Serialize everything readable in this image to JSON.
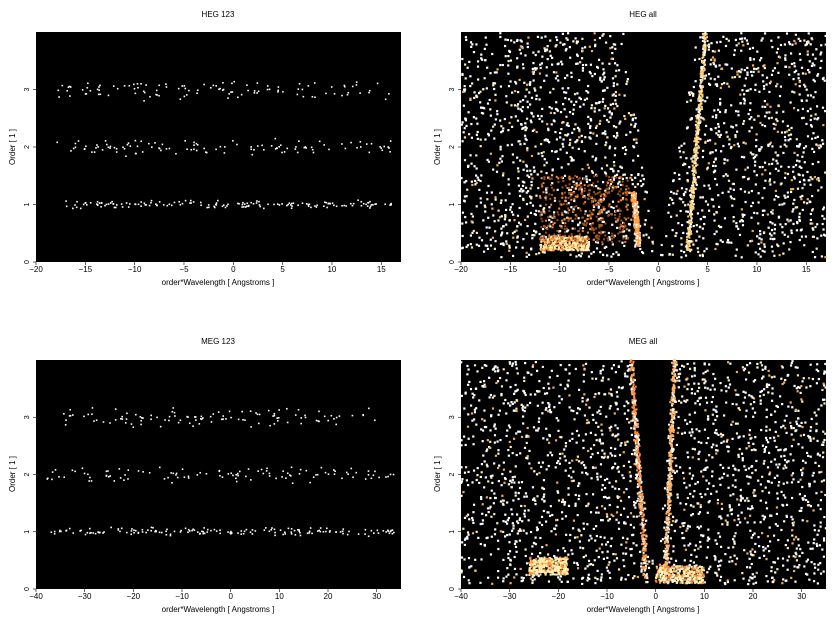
{
  "chart_data": [
    {
      "type": "heatmap",
      "title": "HEG 123",
      "xlabel": "order*Wavelength [ Angstroms ]",
      "ylabel": "Order [ 1 ]",
      "xlim": [
        -20,
        17
      ],
      "ylim": [
        0,
        4
      ],
      "xticks": [
        "−20",
        "−15",
        "−10",
        "−5",
        "0",
        "5",
        "10",
        "15"
      ],
      "yticks": [
        "0",
        "1",
        "2",
        "3"
      ],
      "background": "#000000",
      "density": "sparse",
      "bands": [
        {
          "order": 1,
          "x_range": [
            -17,
            16
          ],
          "spread": 0.1
        },
        {
          "order": 2,
          "x_range": [
            -18,
            16
          ],
          "spread": 0.18
        },
        {
          "order": 3,
          "x_range": [
            -18,
            16
          ],
          "spread": 0.25
        }
      ]
    },
    {
      "type": "heatmap",
      "title": "HEG all",
      "xlabel": "order*Wavelength [ Angstroms ]",
      "ylabel": "Order [ 1 ]",
      "xlim": [
        -20,
        17
      ],
      "ylim": [
        0,
        4
      ],
      "xticks": [
        "−20",
        "−15",
        "−10",
        "−5",
        "0",
        "5",
        "10",
        "15"
      ],
      "yticks": [
        "0",
        "1",
        "2",
        "3"
      ],
      "background": "#000000",
      "density": "dense",
      "empty_wedge": {
        "apex_x": 0,
        "top_x_range": [
          -3.5,
          4
        ]
      },
      "bright_arms": [
        {
          "from": [
            3,
            0.2
          ],
          "to": [
            4.8,
            4
          ],
          "color": "#ffd070"
        },
        {
          "from": [
            -2,
            0.3
          ],
          "to": [
            -2.5,
            1.2
          ],
          "color": "#ff9a40"
        }
      ],
      "hot_regions": [
        {
          "x_range": [
            -12,
            -7
          ],
          "y_range": [
            0.2,
            0.45
          ],
          "color": "#fff0b0"
        },
        {
          "x_range": [
            -12,
            -3
          ],
          "y_range": [
            0.3,
            1.5
          ],
          "color": "#a05020"
        }
      ]
    },
    {
      "type": "heatmap",
      "title": "MEG 123",
      "xlabel": "order*Wavelength [ Angstroms ]",
      "ylabel": "Order [ 1 ]",
      "xlim": [
        -40,
        35
      ],
      "ylim": [
        0,
        4
      ],
      "xticks": [
        "−40",
        "−30",
        "−20",
        "−10",
        "0",
        "10",
        "20",
        "30"
      ],
      "yticks": [
        "0",
        "1",
        "2",
        "3"
      ],
      "background": "#000000",
      "density": "sparse",
      "bands": [
        {
          "order": 1,
          "x_range": [
            -38,
            34
          ],
          "spread": 0.1
        },
        {
          "order": 2,
          "x_range": [
            -38,
            34
          ],
          "spread": 0.18
        },
        {
          "order": 3,
          "x_range": [
            -35,
            30
          ],
          "spread": 0.25
        }
      ]
    },
    {
      "type": "heatmap",
      "title": "MEG all",
      "xlabel": "order*Wavelength [ Angstroms ]",
      "ylabel": "Order [ 1 ]",
      "xlim": [
        -40,
        35
      ],
      "ylim": [
        0,
        4
      ],
      "xticks": [
        "−40",
        "−30",
        "−20",
        "−10",
        "0",
        "10",
        "20",
        "30"
      ],
      "yticks": [
        "0",
        "1",
        "2",
        "3"
      ],
      "background": "#000000",
      "density": "dense",
      "empty_wedge": {
        "apex_x": 0,
        "top_x_range": [
          -5,
          4
        ]
      },
      "bright_arms": [
        {
          "from": [
            2,
            0.2
          ],
          "to": [
            4,
            4
          ],
          "color": "#ffb060"
        },
        {
          "from": [
            -2,
            0.2
          ],
          "to": [
            -5,
            4
          ],
          "color": "#ff9040"
        }
      ],
      "hot_regions": [
        {
          "x_range": [
            -26,
            -18
          ],
          "y_range": [
            0.25,
            0.55
          ],
          "color": "#fff0b0"
        },
        {
          "x_range": [
            0,
            10
          ],
          "y_range": [
            0.1,
            0.4
          ],
          "color": "#fff4c0"
        }
      ]
    }
  ]
}
